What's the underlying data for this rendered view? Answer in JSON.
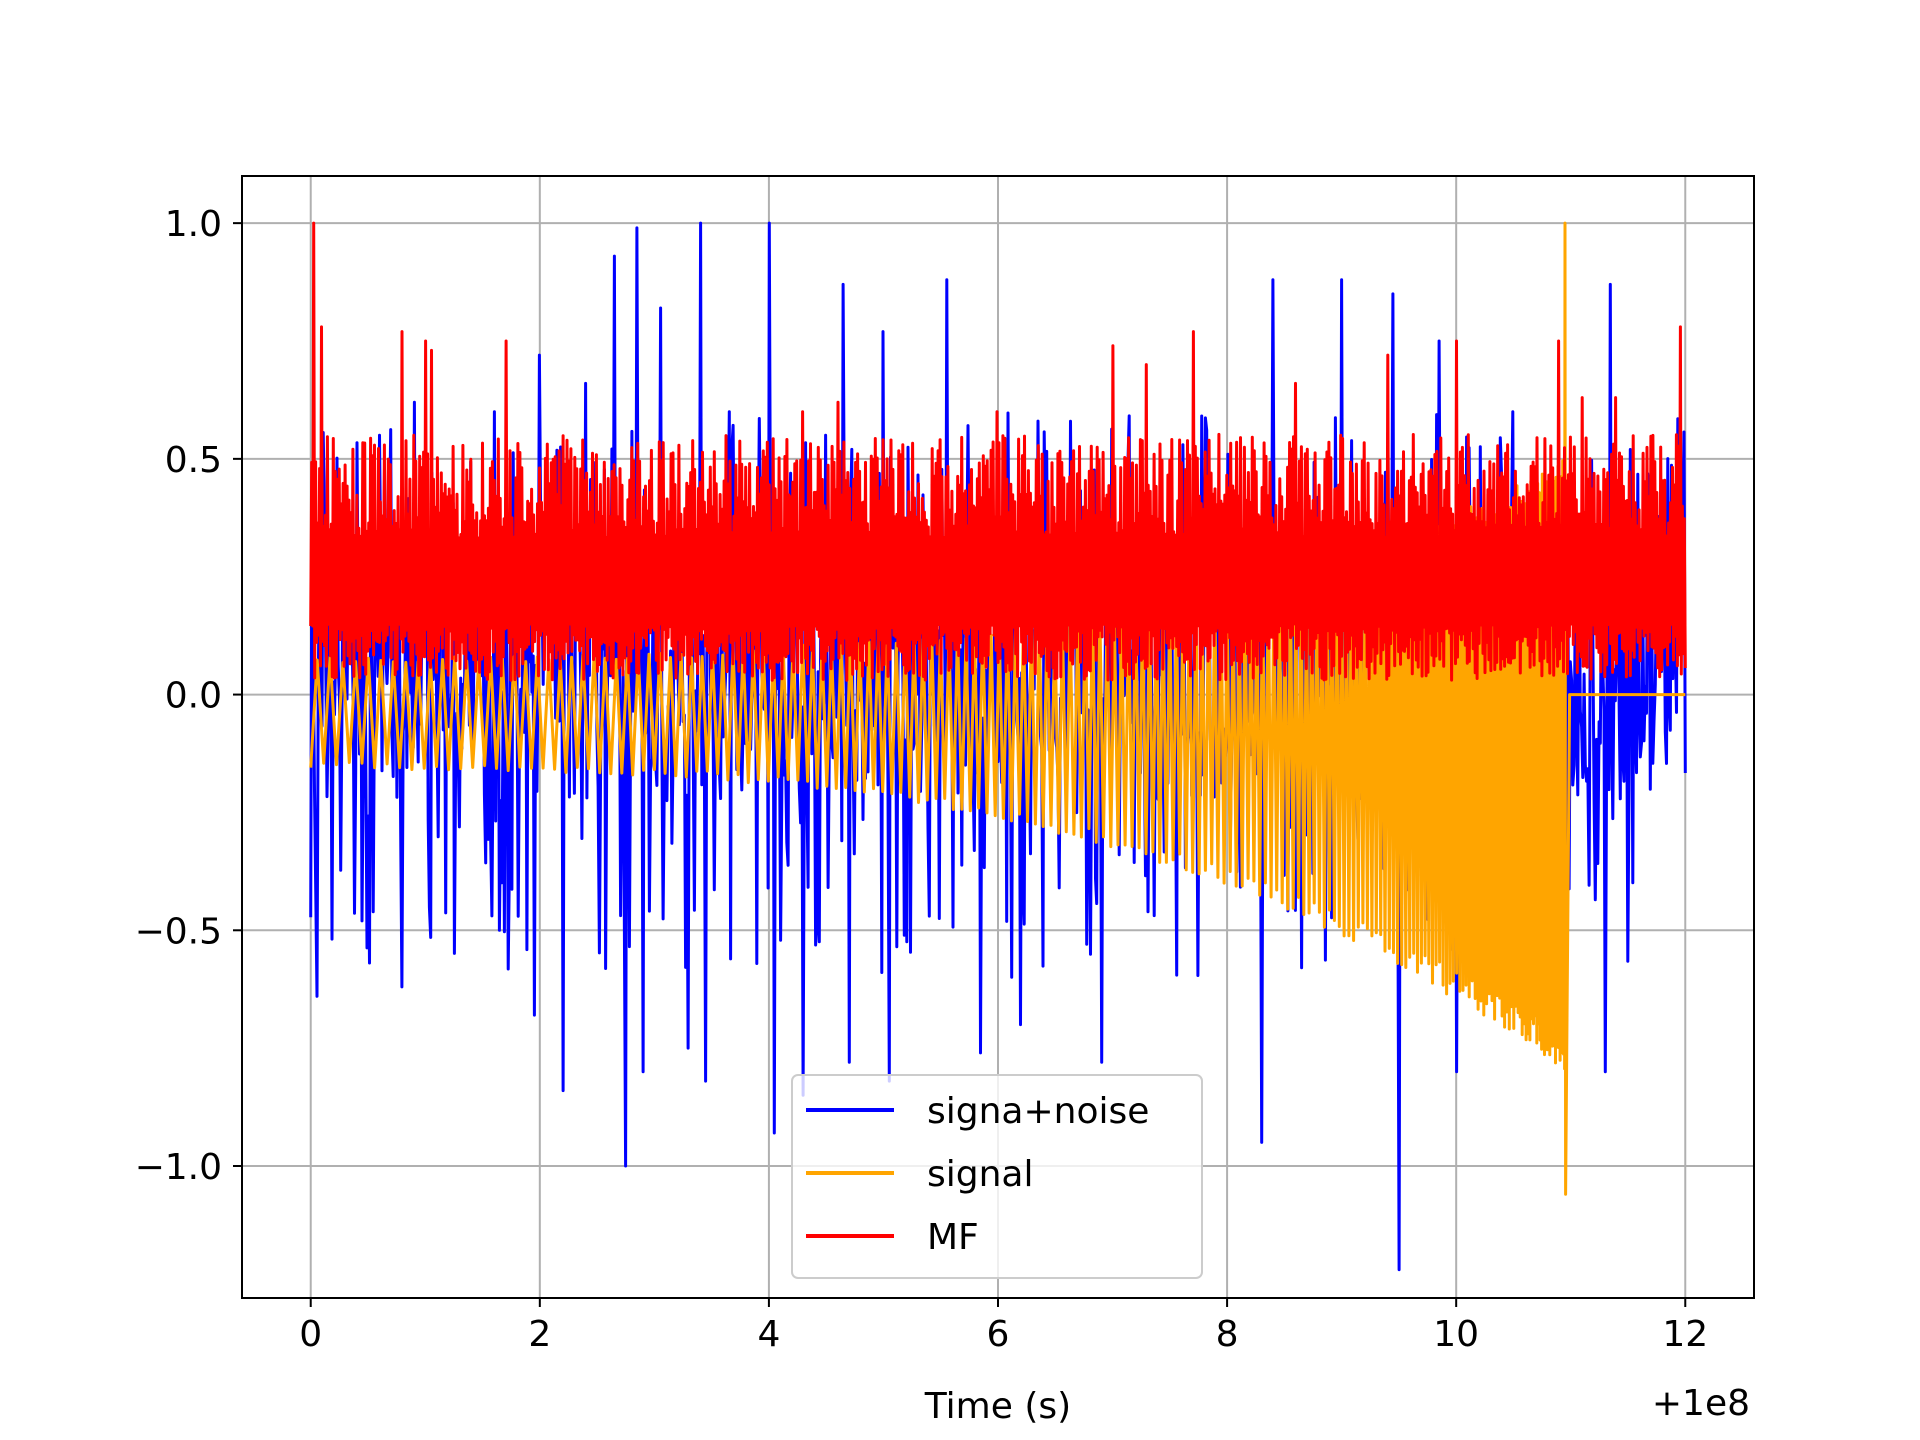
{
  "chart_data": {
    "type": "line",
    "title": "",
    "xlabel": "Time (s)",
    "ylabel": "",
    "x_offset_label": "+1e8",
    "xlim": [
      -0.6,
      12.6
    ],
    "ylim": [
      -1.28,
      1.1
    ],
    "x_ticks": [
      0,
      2,
      4,
      6,
      8,
      10,
      12
    ],
    "x_tick_labels": [
      "0",
      "2",
      "4",
      "6",
      "8",
      "10",
      "12"
    ],
    "y_ticks": [
      -1.0,
      -0.5,
      0.0,
      0.5,
      1.0
    ],
    "y_tick_labels": [
      "−1.0",
      "−0.5",
      "0.0",
      "0.5",
      "1.0"
    ],
    "grid": true,
    "legend_position": "lower center",
    "series": [
      {
        "name": "signa+noise",
        "color": "#0000ff",
        "x_range": [
          0,
          12
        ],
        "baseline": 0.05,
        "spike_max": 1.0,
        "spike_min": -1.22,
        "peaks": [
          [
            0.05,
            0.33
          ],
          [
            0.6,
            0.55
          ],
          [
            0.9,
            0.62
          ],
          [
            1.6,
            0.6
          ],
          [
            2.0,
            0.72
          ],
          [
            2.4,
            0.66
          ],
          [
            2.65,
            0.93
          ],
          [
            2.85,
            0.99
          ],
          [
            3.05,
            0.82
          ],
          [
            3.4,
            1.0
          ],
          [
            3.65,
            0.6
          ],
          [
            4.0,
            1.0
          ],
          [
            4.5,
            0.55
          ],
          [
            4.65,
            0.87
          ],
          [
            5.0,
            0.77
          ],
          [
            5.55,
            0.88
          ],
          [
            6.35,
            0.58
          ],
          [
            6.9,
            0.73
          ],
          [
            8.4,
            0.88
          ],
          [
            9.0,
            0.88
          ],
          [
            9.45,
            0.85
          ],
          [
            9.85,
            0.75
          ],
          [
            10.5,
            0.6
          ],
          [
            11.35,
            0.87
          ]
        ],
        "troughs": [
          [
            0.05,
            -0.64
          ],
          [
            0.45,
            -0.48
          ],
          [
            0.8,
            -0.62
          ],
          [
            1.65,
            -0.5
          ],
          [
            1.95,
            -0.68
          ],
          [
            2.2,
            -0.84
          ],
          [
            2.75,
            -1.0
          ],
          [
            2.9,
            -0.8
          ],
          [
            3.3,
            -0.75
          ],
          [
            3.45,
            -0.82
          ],
          [
            4.05,
            -0.93
          ],
          [
            4.3,
            -0.85
          ],
          [
            4.7,
            -0.78
          ],
          [
            5.05,
            -0.82
          ],
          [
            5.85,
            -0.76
          ],
          [
            6.2,
            -0.7
          ],
          [
            6.9,
            -0.78
          ],
          [
            8.3,
            -0.95
          ],
          [
            9.5,
            -1.22
          ],
          [
            10.0,
            -0.8
          ],
          [
            11.3,
            -0.8
          ]
        ]
      },
      {
        "name": "signal",
        "color": "#ffa500",
        "x_range": [
          0,
          12
        ],
        "chirp_end": 10.95,
        "upper_start": 0.08,
        "upper_end": 0.5,
        "lower_start": -0.16,
        "lower_end": -0.8,
        "final_max": 1.0,
        "final_min": -1.06,
        "after_chirp": 0.0
      },
      {
        "name": "MF",
        "color": "#ff0000",
        "x_range": [
          0,
          12
        ],
        "baseline": 0.2,
        "upper_typ": 0.42,
        "lower_typ": 0.03,
        "peaks": [
          [
            0.03,
            1.0
          ],
          [
            0.1,
            0.78
          ],
          [
            0.8,
            0.77
          ],
          [
            1.0,
            0.75
          ],
          [
            1.05,
            0.73
          ],
          [
            1.7,
            0.75
          ],
          [
            4.3,
            0.6
          ],
          [
            4.6,
            0.62
          ],
          [
            6.0,
            0.6
          ],
          [
            7.0,
            0.74
          ],
          [
            7.3,
            0.7
          ],
          [
            7.7,
            0.77
          ],
          [
            8.6,
            0.66
          ],
          [
            9.0,
            0.55
          ],
          [
            9.4,
            0.72
          ],
          [
            10.0,
            0.75
          ],
          [
            10.9,
            0.75
          ],
          [
            11.1,
            0.63
          ],
          [
            11.4,
            0.63
          ],
          [
            11.95,
            0.78
          ]
        ]
      }
    ]
  }
}
